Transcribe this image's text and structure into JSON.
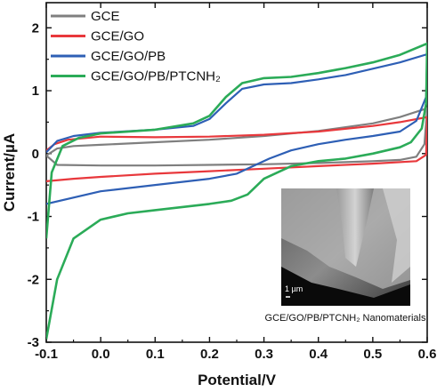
{
  "chart_data": {
    "type": "line",
    "title": "",
    "xlabel": "Potential/V",
    "ylabel": "Current/µA",
    "xlim": [
      -0.1,
      0.6
    ],
    "ylim": [
      -3.0,
      2.4
    ],
    "xticks": [
      "-0.1",
      "0.0",
      "0.1",
      "0.2",
      "0.3",
      "0.4",
      "0.5",
      "0.6"
    ],
    "yticks": [
      "-3",
      "-2",
      "-1",
      "0",
      "1",
      "2"
    ],
    "legend_position": "top-left",
    "series": [
      {
        "name": "GCE",
        "color": "#7f7f7f",
        "forward": [
          [
            -0.1,
            -0.03
          ],
          [
            -0.08,
            0.08
          ],
          [
            -0.05,
            0.12
          ],
          [
            0.0,
            0.14
          ],
          [
            0.1,
            0.18
          ],
          [
            0.2,
            0.22
          ],
          [
            0.3,
            0.28
          ],
          [
            0.4,
            0.36
          ],
          [
            0.5,
            0.48
          ],
          [
            0.55,
            0.58
          ],
          [
            0.6,
            0.72
          ]
        ],
        "reverse": [
          [
            0.6,
            0.72
          ],
          [
            0.595,
            0.15
          ],
          [
            0.58,
            -0.05
          ],
          [
            0.55,
            -0.1
          ],
          [
            0.5,
            -0.12
          ],
          [
            0.4,
            -0.15
          ],
          [
            0.3,
            -0.17
          ],
          [
            0.2,
            -0.18
          ],
          [
            0.1,
            -0.19
          ],
          [
            0.0,
            -0.19
          ],
          [
            -0.08,
            -0.18
          ],
          [
            -0.1,
            -0.03
          ]
        ]
      },
      {
        "name": "GCE/GO",
        "color": "#e8383c",
        "forward": [
          [
            -0.1,
            0.05
          ],
          [
            -0.085,
            0.15
          ],
          [
            -0.06,
            0.22
          ],
          [
            0.0,
            0.27
          ],
          [
            0.1,
            0.26
          ],
          [
            0.2,
            0.27
          ],
          [
            0.3,
            0.3
          ],
          [
            0.4,
            0.35
          ],
          [
            0.5,
            0.44
          ],
          [
            0.55,
            0.5
          ],
          [
            0.6,
            0.58
          ]
        ],
        "reverse": [
          [
            0.6,
            0.58
          ],
          [
            0.598,
            -0.02
          ],
          [
            0.58,
            -0.12
          ],
          [
            0.5,
            -0.16
          ],
          [
            0.4,
            -0.2
          ],
          [
            0.3,
            -0.24
          ],
          [
            0.2,
            -0.28
          ],
          [
            0.1,
            -0.32
          ],
          [
            0.0,
            -0.37
          ],
          [
            -0.05,
            -0.4
          ],
          [
            -0.1,
            -0.44
          ]
        ]
      },
      {
        "name": "GCE/GO/PB",
        "color": "#2e5fb5",
        "forward": [
          [
            -0.1,
            0.02
          ],
          [
            -0.08,
            0.2
          ],
          [
            -0.05,
            0.28
          ],
          [
            0.0,
            0.33
          ],
          [
            0.1,
            0.38
          ],
          [
            0.17,
            0.44
          ],
          [
            0.2,
            0.55
          ],
          [
            0.23,
            0.8
          ],
          [
            0.26,
            1.03
          ],
          [
            0.3,
            1.1
          ],
          [
            0.35,
            1.12
          ],
          [
            0.4,
            1.18
          ],
          [
            0.45,
            1.25
          ],
          [
            0.5,
            1.35
          ],
          [
            0.55,
            1.45
          ],
          [
            0.6,
            1.58
          ]
        ],
        "reverse": [
          [
            0.6,
            1.58
          ],
          [
            0.598,
            0.9
          ],
          [
            0.58,
            0.52
          ],
          [
            0.55,
            0.35
          ],
          [
            0.5,
            0.28
          ],
          [
            0.45,
            0.22
          ],
          [
            0.4,
            0.15
          ],
          [
            0.35,
            0.05
          ],
          [
            0.31,
            -0.08
          ],
          [
            0.28,
            -0.2
          ],
          [
            0.25,
            -0.32
          ],
          [
            0.2,
            -0.4
          ],
          [
            0.1,
            -0.5
          ],
          [
            0.0,
            -0.6
          ],
          [
            -0.1,
            -0.8
          ]
        ]
      },
      {
        "name": "GCE/GO/PB/PTCNH₂",
        "color": "#2bab58",
        "forward": [
          [
            -0.1,
            -1.35
          ],
          [
            -0.09,
            -0.3
          ],
          [
            -0.07,
            0.12
          ],
          [
            -0.04,
            0.25
          ],
          [
            0.0,
            0.32
          ],
          [
            0.1,
            0.38
          ],
          [
            0.17,
            0.48
          ],
          [
            0.2,
            0.6
          ],
          [
            0.23,
            0.9
          ],
          [
            0.26,
            1.12
          ],
          [
            0.3,
            1.2
          ],
          [
            0.35,
            1.22
          ],
          [
            0.4,
            1.28
          ],
          [
            0.45,
            1.36
          ],
          [
            0.5,
            1.45
          ],
          [
            0.55,
            1.57
          ],
          [
            0.6,
            1.75
          ]
        ],
        "reverse": [
          [
            0.6,
            1.75
          ],
          [
            0.598,
            0.8
          ],
          [
            0.59,
            0.4
          ],
          [
            0.57,
            0.18
          ],
          [
            0.55,
            0.1
          ],
          [
            0.5,
            0.0
          ],
          [
            0.45,
            -0.08
          ],
          [
            0.4,
            -0.12
          ],
          [
            0.35,
            -0.2
          ],
          [
            0.3,
            -0.4
          ],
          [
            0.27,
            -0.65
          ],
          [
            0.24,
            -0.75
          ],
          [
            0.2,
            -0.8
          ],
          [
            0.1,
            -0.9
          ],
          [
            0.05,
            -0.95
          ],
          [
            0.0,
            -1.05
          ],
          [
            -0.05,
            -1.35
          ],
          [
            -0.08,
            -2.0
          ],
          [
            -0.1,
            -2.95
          ]
        ]
      }
    ],
    "inset": {
      "caption": "GCE/GO/PB/PTCNH₂ Nanomaterials",
      "scale_bar_label": "1 µm"
    }
  }
}
